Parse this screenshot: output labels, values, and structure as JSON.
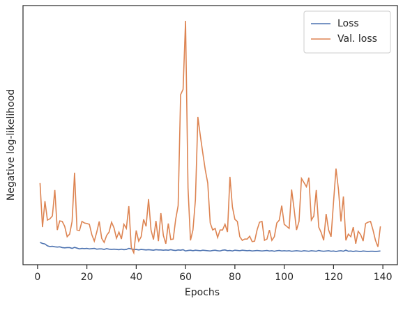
{
  "chart_data": {
    "type": "line",
    "xlabel": "Epochs",
    "ylabel": "Negative log-likelihood",
    "x": [
      1,
      2,
      3,
      4,
      5,
      6,
      7,
      8,
      9,
      10,
      11,
      12,
      13,
      14,
      15,
      16,
      17,
      18,
      19,
      20,
      21,
      22,
      23,
      24,
      25,
      26,
      27,
      28,
      29,
      30,
      31,
      32,
      33,
      34,
      35,
      36,
      37,
      38,
      39,
      40,
      41,
      42,
      43,
      44,
      45,
      46,
      47,
      48,
      49,
      50,
      51,
      52,
      53,
      54,
      55,
      56,
      57,
      58,
      59,
      60,
      61,
      62,
      63,
      64,
      65,
      66,
      67,
      68,
      69,
      70,
      71,
      72,
      73,
      74,
      75,
      76,
      77,
      78,
      79,
      80,
      81,
      82,
      83,
      84,
      85,
      86,
      87,
      88,
      89,
      90,
      91,
      92,
      93,
      94,
      95,
      96,
      97,
      98,
      99,
      100,
      101,
      102,
      103,
      104,
      105,
      106,
      107,
      108,
      109,
      110,
      111,
      112,
      113,
      114,
      115,
      116,
      117,
      118,
      119,
      120,
      121,
      122,
      123,
      124,
      125,
      126,
      127,
      128,
      129,
      130,
      131,
      132,
      133,
      134,
      135,
      136,
      137,
      138,
      139
    ],
    "series": [
      {
        "name": "Loss",
        "color": "#4c72b0",
        "values": [
          8.6,
          8.2,
          8.0,
          7.3,
          7.0,
          7.1,
          6.9,
          6.8,
          6.9,
          6.6,
          6.5,
          6.6,
          6.6,
          6.3,
          6.7,
          6.4,
          6.1,
          6.3,
          6.2,
          6.3,
          6.1,
          6.2,
          6.3,
          6.0,
          6.1,
          6.1,
          5.9,
          6.2,
          6.0,
          5.9,
          6.0,
          5.9,
          5.8,
          6.0,
          5.8,
          5.9,
          6.3,
          6.1,
          5.8,
          5.9,
          5.7,
          5.9,
          5.8,
          5.7,
          5.8,
          5.7,
          5.6,
          5.8,
          5.7,
          5.7,
          5.6,
          5.7,
          5.6,
          5.8,
          5.6,
          5.5,
          5.7,
          5.6,
          5.8,
          5.3,
          5.5,
          5.6,
          5.4,
          5.6,
          5.5,
          5.4,
          5.6,
          5.5,
          5.4,
          5.3,
          5.5,
          5.6,
          5.4,
          5.3,
          5.6,
          5.7,
          5.4,
          5.5,
          5.3,
          5.6,
          5.5,
          5.4,
          5.6,
          5.5,
          5.4,
          5.5,
          5.3,
          5.4,
          5.5,
          5.4,
          5.3,
          5.4,
          5.5,
          5.3,
          5.4,
          5.2,
          5.4,
          5.5,
          5.3,
          5.4,
          5.3,
          5.4,
          5.2,
          5.3,
          5.4,
          5.3,
          5.2,
          5.4,
          5.3,
          5.2,
          5.4,
          5.3,
          5.2,
          5.5,
          5.3,
          5.2,
          5.3,
          5.4,
          5.2,
          5.3,
          5.1,
          5.3,
          5.4,
          5.2,
          5.6,
          5.2,
          5.3,
          5.1,
          5.3,
          5.2,
          5.1,
          5.3,
          5.2,
          5.1,
          5.2,
          5.2,
          5.1,
          5.2,
          5.3
        ]
      },
      {
        "name": "Val. loss",
        "color": "#dd8452",
        "values": [
          31.5,
          14.5,
          24.5,
          17.2,
          17.7,
          18.8,
          28.8,
          13.4,
          16.9,
          16.7,
          14.8,
          10.8,
          11.8,
          16.7,
          35.5,
          13.4,
          13.2,
          16.7,
          16.1,
          15.9,
          15.6,
          11.6,
          9.1,
          12.6,
          16.7,
          10.2,
          8.6,
          11.3,
          12.6,
          16.4,
          14.2,
          10.2,
          12.6,
          9.9,
          15.6,
          14.0,
          22.6,
          6.7,
          4.6,
          13.2,
          9.1,
          10.8,
          17.5,
          14.8,
          25.3,
          13.4,
          9.7,
          16.9,
          9.1,
          19.9,
          11.3,
          8.1,
          15.9,
          9.7,
          9.9,
          17.5,
          22.8,
          65.6,
          67.7,
          94.1,
          29.6,
          9.4,
          13.4,
          25.0,
          57.0,
          49.7,
          43.0,
          36.6,
          31.5,
          16.1,
          13.4,
          14.0,
          10.5,
          13.4,
          13.4,
          15.6,
          12.6,
          33.9,
          22.3,
          17.5,
          16.7,
          10.8,
          9.4,
          9.9,
          9.9,
          11.0,
          8.9,
          9.1,
          13.4,
          16.4,
          16.7,
          9.4,
          9.9,
          13.4,
          9.4,
          10.8,
          16.1,
          17.2,
          22.8,
          15.6,
          14.8,
          14.0,
          29.0,
          21.5,
          13.4,
          16.7,
          33.3,
          31.7,
          30.1,
          33.6,
          17.2,
          18.8,
          28.8,
          14.5,
          12.4,
          9.4,
          19.6,
          13.4,
          10.8,
          24.2,
          37.1,
          29.0,
          16.7,
          26.3,
          9.4,
          11.8,
          10.8,
          14.5,
          8.1,
          12.9,
          11.6,
          9.1,
          15.9,
          16.4,
          16.7,
          13.4,
          9.4,
          6.9,
          14.8
        ]
      }
    ],
    "xlim": [
      -5.9,
      145.9
    ],
    "xticks": [
      0,
      20,
      40,
      60,
      80,
      100,
      120,
      140
    ],
    "ylim": [
      0,
      100
    ],
    "legend": "upper right"
  }
}
